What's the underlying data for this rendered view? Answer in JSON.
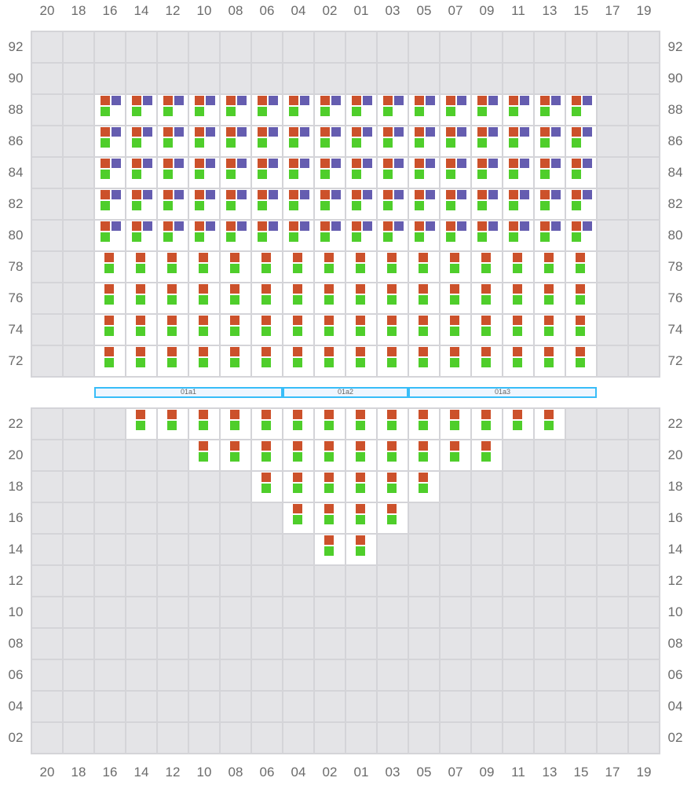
{
  "columns": [
    "20",
    "18",
    "16",
    "14",
    "12",
    "10",
    "08",
    "06",
    "04",
    "02",
    "01",
    "03",
    "05",
    "07",
    "09",
    "11",
    "13",
    "15",
    "17",
    "19"
  ],
  "colors": {
    "orange": "#cc512b",
    "purple": "#655db0",
    "green": "#4fce2b",
    "empty": "#e4e4e7",
    "active": "#ffffff",
    "band": "#38bdf8"
  },
  "top_section": {
    "rows": [
      {
        "label": "92",
        "range": null,
        "slots": []
      },
      {
        "label": "90",
        "range": null,
        "slots": []
      },
      {
        "label": "88",
        "range": [
          "16",
          "15"
        ],
        "slots": [
          "orange",
          "purple",
          "green"
        ]
      },
      {
        "label": "86",
        "range": [
          "16",
          "15"
        ],
        "slots": [
          "orange",
          "purple",
          "green"
        ]
      },
      {
        "label": "84",
        "range": [
          "16",
          "15"
        ],
        "slots": [
          "orange",
          "purple",
          "green"
        ]
      },
      {
        "label": "82",
        "range": [
          "16",
          "15"
        ],
        "slots": [
          "orange",
          "purple",
          "green"
        ]
      },
      {
        "label": "80",
        "range": [
          "16",
          "15"
        ],
        "slots": [
          "orange",
          "purple",
          "green"
        ]
      },
      {
        "label": "78",
        "range": [
          "16",
          "15"
        ],
        "slots": [
          "orange",
          "green"
        ]
      },
      {
        "label": "76",
        "range": [
          "16",
          "15"
        ],
        "slots": [
          "orange",
          "green"
        ]
      },
      {
        "label": "74",
        "range": [
          "16",
          "15"
        ],
        "slots": [
          "orange",
          "green"
        ]
      },
      {
        "label": "72",
        "range": [
          "16",
          "15"
        ],
        "slots": [
          "orange",
          "green"
        ]
      }
    ]
  },
  "bands": [
    {
      "label": "01a1",
      "from": "16",
      "to": "06"
    },
    {
      "label": "01a2",
      "from": "04",
      "to": "03"
    },
    {
      "label": "01a3",
      "from": "05",
      "to": "15"
    }
  ],
  "bottom_section": {
    "rows": [
      {
        "label": "22",
        "range": [
          "14",
          "13"
        ],
        "slots": [
          "orange",
          "green"
        ]
      },
      {
        "label": "20",
        "range": [
          "10",
          "09"
        ],
        "slots": [
          "orange",
          "green"
        ]
      },
      {
        "label": "18",
        "range": [
          "06",
          "05"
        ],
        "slots": [
          "orange",
          "green"
        ]
      },
      {
        "label": "16",
        "range": [
          "04",
          "03"
        ],
        "slots": [
          "orange",
          "green"
        ]
      },
      {
        "label": "14",
        "range": [
          "02",
          "01"
        ],
        "slots": [
          "orange",
          "green"
        ]
      },
      {
        "label": "12",
        "range": null,
        "slots": []
      },
      {
        "label": "10",
        "range": null,
        "slots": []
      },
      {
        "label": "08",
        "range": null,
        "slots": []
      },
      {
        "label": "06",
        "range": null,
        "slots": []
      },
      {
        "label": "04",
        "range": null,
        "slots": []
      },
      {
        "label": "02",
        "range": null,
        "slots": []
      }
    ]
  }
}
